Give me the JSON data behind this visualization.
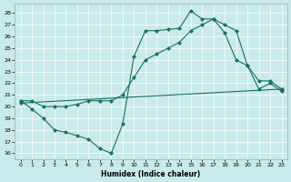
{
  "xlabel": "Humidex (Indice chaleur)",
  "bg_color": "#c8eaea",
  "line_color": "#1a7060",
  "xlim": [
    -0.5,
    23.5
  ],
  "ylim": [
    15.5,
    28.8
  ],
  "xticks": [
    0,
    1,
    2,
    3,
    4,
    5,
    6,
    7,
    8,
    9,
    10,
    11,
    12,
    13,
    14,
    15,
    16,
    17,
    18,
    19,
    20,
    21,
    22,
    23
  ],
  "yticks": [
    16,
    17,
    18,
    19,
    20,
    21,
    22,
    23,
    24,
    25,
    26,
    27,
    28
  ],
  "line1_x": [
    0,
    1,
    2,
    3,
    4,
    5,
    6,
    7,
    8,
    9,
    10,
    11,
    12,
    13,
    14,
    15,
    16,
    17,
    18,
    19,
    20,
    21,
    22,
    23
  ],
  "line1_y": [
    20.5,
    19.8,
    19.0,
    18.0,
    17.8,
    17.5,
    17.2,
    16.4,
    16.0,
    18.5,
    24.3,
    26.5,
    26.5,
    26.6,
    26.7,
    28.2,
    27.5,
    27.5,
    26.3,
    24.0,
    23.5,
    22.2,
    22.2,
    21.5
  ],
  "line2_x": [
    0,
    1,
    2,
    3,
    4,
    5,
    6,
    7,
    8,
    9,
    10,
    11,
    12,
    13,
    14,
    15,
    16,
    17,
    18,
    19,
    20,
    21,
    22,
    23
  ],
  "line2_y": [
    20.5,
    20.5,
    20.0,
    20.0,
    20.0,
    20.2,
    20.5,
    20.5,
    20.5,
    21.0,
    22.5,
    24.0,
    24.5,
    25.0,
    25.5,
    26.5,
    27.0,
    27.5,
    27.0,
    26.5,
    23.5,
    21.5,
    22.0,
    21.3
  ],
  "line3_x": [
    0,
    23
  ],
  "line3_y": [
    20.3,
    21.5
  ]
}
